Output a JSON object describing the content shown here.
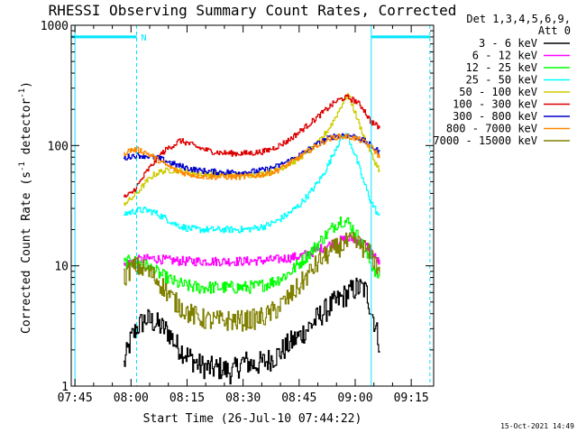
{
  "chart_data": {
    "type": "line",
    "title": "RHESSI Observing Summary Count Rates, Corrected",
    "xlabel": "Start Time (26-Jul-10 07:44:22)",
    "ylabel_parts": [
      "Corrected Count Rate (s",
      "-1",
      " detector",
      "-1",
      ")"
    ],
    "yscale": "log",
    "ylim": [
      1,
      1000
    ],
    "xlim_minutes": [
      -1,
      96
    ],
    "x_ticks": [
      {
        "label": "07:45",
        "min": 0
      },
      {
        "label": "08:00",
        "min": 15
      },
      {
        "label": "08:15",
        "min": 30
      },
      {
        "label": "08:30",
        "min": 45
      },
      {
        "label": "08:45",
        "min": 60
      },
      {
        "label": "09:00",
        "min": 75
      },
      {
        "label": "09:15",
        "min": 90
      }
    ],
    "y_ticks": [
      {
        "label": "1",
        "value": 1
      },
      {
        "label": "10",
        "value": 10
      },
      {
        "label": "100",
        "value": 100
      },
      {
        "label": "1000",
        "value": 1000
      }
    ],
    "legend_header": [
      "Det 1,3,4,5,6,9,",
      "Att 0"
    ],
    "legend_position": "right",
    "night_marker_label": "N",
    "night_bar": {
      "segments": [
        [
          -1,
          16.5
        ],
        [
          79.3,
          95
        ]
      ],
      "value": 800
    },
    "cyan_vlines": [
      0,
      16.5,
      79.3,
      95
    ],
    "series": [
      {
        "name": "3 - 6 keV",
        "color": "#000000",
        "x": [
          13,
          15,
          17,
          19,
          21,
          23,
          25,
          27,
          30,
          33,
          36,
          39,
          42,
          45,
          48,
          51,
          54,
          57,
          60,
          63,
          66,
          69,
          72,
          75,
          77,
          78,
          79,
          80,
          81.5
        ],
        "y": [
          1.5,
          2.5,
          3.2,
          3.6,
          3.4,
          3.1,
          2.8,
          2.2,
          1.8,
          1.5,
          1.4,
          1.4,
          1.3,
          1.6,
          1.5,
          1.6,
          1.8,
          2.2,
          2.6,
          3.2,
          4.0,
          4.8,
          5.6,
          6.5,
          6.5,
          6.0,
          4.5,
          3.5,
          2.2
        ]
      },
      {
        "name": "6 - 12 keV",
        "color": "#ff00ff",
        "x": [
          13,
          15,
          17,
          19,
          21,
          23,
          25,
          27,
          30,
          33,
          36,
          39,
          42,
          45,
          48,
          51,
          54,
          57,
          60,
          63,
          66,
          69,
          72,
          74,
          76,
          78,
          80,
          81.5
        ],
        "y": [
          10,
          10.8,
          11.2,
          11.4,
          11.5,
          11.3,
          11.1,
          11,
          10.9,
          10.9,
          10.9,
          10.9,
          10.9,
          10.9,
          11,
          11.1,
          11.3,
          11.6,
          12,
          12.8,
          14,
          15.5,
          16.5,
          16.8,
          16,
          14.5,
          12,
          10.5
        ]
      },
      {
        "name": "12 - 25 keV",
        "color": "#00ff00",
        "x": [
          13,
          15,
          17,
          19,
          21,
          23,
          25,
          27,
          30,
          33,
          36,
          39,
          42,
          45,
          48,
          51,
          54,
          57,
          60,
          63,
          66,
          69,
          71,
          73,
          75,
          77,
          79,
          81.5
        ],
        "y": [
          10.5,
          11,
          10.6,
          10,
          9.2,
          8.4,
          7.8,
          7.2,
          6.8,
          6.6,
          6.6,
          6.6,
          6.6,
          6.6,
          6.7,
          7,
          7.6,
          8.6,
          10.5,
          13,
          16.5,
          21,
          24,
          23,
          19,
          14.5,
          10.5,
          8
        ]
      },
      {
        "name": "25 - 50 keV",
        "color": "#00ffff",
        "x": [
          13,
          15,
          17,
          19,
          21,
          23,
          25,
          27,
          30,
          33,
          36,
          39,
          42,
          45,
          48,
          51,
          54,
          57,
          60,
          63,
          66,
          68,
          70,
          72,
          73,
          75,
          77,
          79,
          81.5
        ],
        "y": [
          27,
          28,
          29,
          29,
          28,
          26,
          24,
          22,
          20.5,
          20,
          20,
          20,
          20,
          20,
          20.5,
          21.5,
          23.5,
          27,
          32,
          41,
          55,
          72,
          100,
          122,
          118,
          82,
          52,
          35,
          25
        ]
      },
      {
        "name": "50 - 100 keV",
        "color": "#cccc00",
        "x": [
          13,
          15,
          17,
          19,
          21,
          23,
          25,
          27,
          29,
          32,
          35,
          38,
          41,
          44,
          47,
          50,
          53,
          56,
          59,
          62,
          65,
          68,
          70,
          72,
          73,
          74,
          76,
          78,
          80,
          81.5
        ],
        "y": [
          33,
          36,
          42,
          50,
          57,
          61,
          62,
          62,
          61,
          59,
          58,
          57,
          57,
          57,
          57,
          58,
          61,
          67,
          75,
          87,
          105,
          140,
          180,
          240,
          265,
          225,
          150,
          105,
          75,
          62
        ]
      },
      {
        "name": "100 - 300 keV",
        "color": "#dd0000",
        "x": [
          13,
          15,
          17,
          19,
          21,
          23,
          25,
          27,
          28,
          30,
          33,
          36,
          39,
          42,
          45,
          48,
          51,
          54,
          57,
          60,
          63,
          66,
          68,
          70,
          72,
          73,
          75,
          77,
          79,
          81.5
        ],
        "y": [
          37,
          40,
          48,
          60,
          72,
          85,
          96,
          104,
          110,
          105,
          96,
          90,
          87,
          86,
          86,
          87,
          90,
          98,
          110,
          130,
          155,
          185,
          210,
          235,
          250,
          250,
          235,
          205,
          160,
          140
        ]
      },
      {
        "name": "300 - 800 keV",
        "color": "#0000cc",
        "x": [
          13,
          15,
          17,
          19,
          21,
          23,
          25,
          27,
          30,
          33,
          36,
          39,
          42,
          45,
          48,
          51,
          54,
          57,
          60,
          63,
          66,
          68,
          70,
          72,
          74,
          76,
          78,
          80,
          81.5
        ],
        "y": [
          78,
          82,
          83,
          82,
          80,
          77,
          73,
          69,
          65,
          62,
          61,
          60,
          60,
          60,
          61,
          63,
          67,
          74,
          83,
          95,
          108,
          116,
          121,
          123,
          120,
          115,
          106,
          95,
          88
        ]
      },
      {
        "name": "800 - 7000 keV",
        "color": "#ff8800",
        "x": [
          13,
          15,
          17,
          19,
          21,
          23,
          25,
          27,
          30,
          33,
          36,
          39,
          42,
          45,
          48,
          51,
          54,
          57,
          60,
          63,
          66,
          68,
          70,
          72,
          74,
          76,
          78,
          80,
          81.5
        ],
        "y": [
          86,
          92,
          92,
          87,
          80,
          73,
          67,
          62,
          58,
          56,
          55,
          55,
          55,
          55,
          56,
          58,
          62,
          70,
          80,
          93,
          106,
          114,
          118,
          119,
          117,
          112,
          104,
          92,
          80
        ]
      },
      {
        "name": "7000 - 15000 keV",
        "color": "#808000",
        "x": [
          13,
          15,
          17,
          19,
          21,
          23,
          25,
          27,
          30,
          33,
          36,
          39,
          42,
          45,
          48,
          51,
          54,
          57,
          60,
          63,
          66,
          69,
          72,
          74,
          76,
          78,
          80,
          81.5
        ],
        "y": [
          8,
          9.6,
          9.8,
          9.2,
          8.2,
          7,
          5.8,
          4.9,
          4.1,
          3.7,
          3.5,
          3.5,
          3.5,
          3.5,
          3.6,
          3.8,
          4.4,
          5.4,
          6.8,
          9,
          11.5,
          13.5,
          15.2,
          15.8,
          15,
          13.5,
          11.2,
          9
        ]
      }
    ]
  },
  "footer_date": "15-Oct-2021 14:49"
}
